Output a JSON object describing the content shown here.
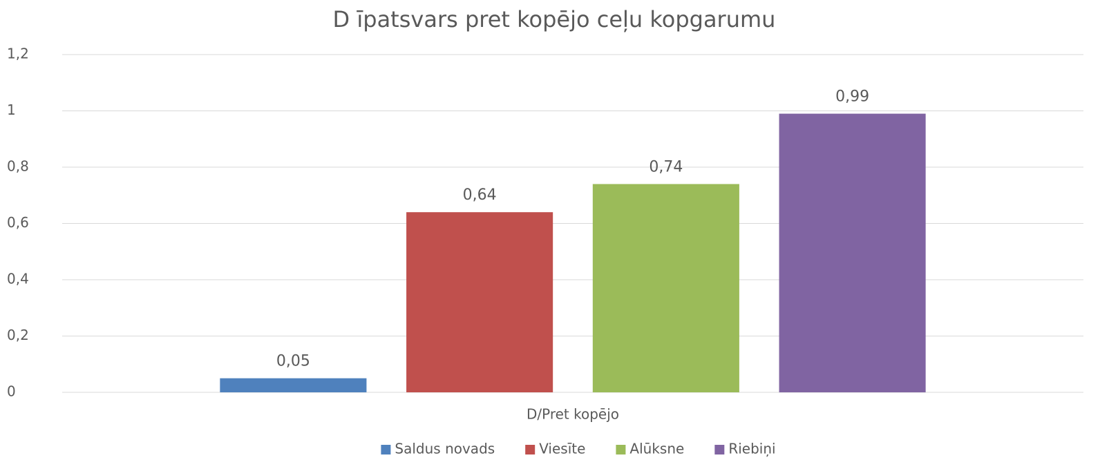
{
  "chart_data": {
    "type": "bar",
    "title": "D īpatsvars pret kopējo ceļu kopgarumu",
    "categories": [
      "D/Pret kopējo"
    ],
    "series": [
      {
        "name": "Saldus novads",
        "color": "#4f81bd",
        "values": [
          0.05
        ],
        "value_labels": [
          "0,05"
        ]
      },
      {
        "name": "Viesīte",
        "color": "#c0504d",
        "values": [
          0.64
        ],
        "value_labels": [
          "0,64"
        ]
      },
      {
        "name": "Alūksne",
        "color": "#9bbb59",
        "values": [
          0.74
        ],
        "value_labels": [
          "0,74"
        ]
      },
      {
        "name": "Riebiņi",
        "color": "#8064a2",
        "values": [
          0.99
        ],
        "value_labels": [
          "0,99"
        ]
      }
    ],
    "ylim": [
      0,
      1.2
    ],
    "yticks": [
      0,
      {
        "value": 0.2,
        "label": "0,2"
      },
      {
        "value": 0.4,
        "label": "0,4"
      },
      {
        "value": 0.6,
        "label": "0,6"
      },
      {
        "value": 0.8,
        "label": "0,8"
      },
      1,
      {
        "value": 1.2,
        "label": "1,2"
      }
    ],
    "grid": true,
    "legend": "bottom"
  }
}
